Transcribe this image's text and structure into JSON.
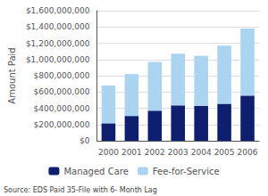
{
  "chart_data": {
    "type": "bar",
    "categories": [
      "2000",
      "2001",
      "2002",
      "2003",
      "2004",
      "2005",
      "2006"
    ],
    "series": [
      {
        "name": "Managed Care",
        "color": "#0d1f6e",
        "values": [
          215000000,
          305000000,
          370000000,
          435000000,
          430000000,
          455000000,
          555000000
        ]
      },
      {
        "name": "Fee-for-Service",
        "color": "#aad4f0",
        "values": [
          465000000,
          515000000,
          600000000,
          635000000,
          615000000,
          715000000,
          825000000
        ]
      }
    ],
    "stacked": true,
    "ylabel": "Amount Paid",
    "ylim": [
      0,
      1600000000
    ],
    "yticks": [
      {
        "value": 0,
        "label": "$0"
      },
      {
        "value": 200000000,
        "label": "$200,000,000"
      },
      {
        "value": 400000000,
        "label": "$400,000,000"
      },
      {
        "value": 600000000,
        "label": "$600,000,000"
      },
      {
        "value": 800000000,
        "label": "$800,000,000"
      },
      {
        "value": 1000000000,
        "label": "$1,000,000,000"
      },
      {
        "value": 1200000000,
        "label": "$1,200,000,000"
      },
      {
        "value": 1400000000,
        "label": "$1,400,000,000"
      },
      {
        "value": 1600000000,
        "label": "$1,600,000,000"
      }
    ],
    "grid": true,
    "legend": "bottom",
    "annotations": [
      "Source: EDS Paid 35-File with 6- Month Lag"
    ]
  }
}
